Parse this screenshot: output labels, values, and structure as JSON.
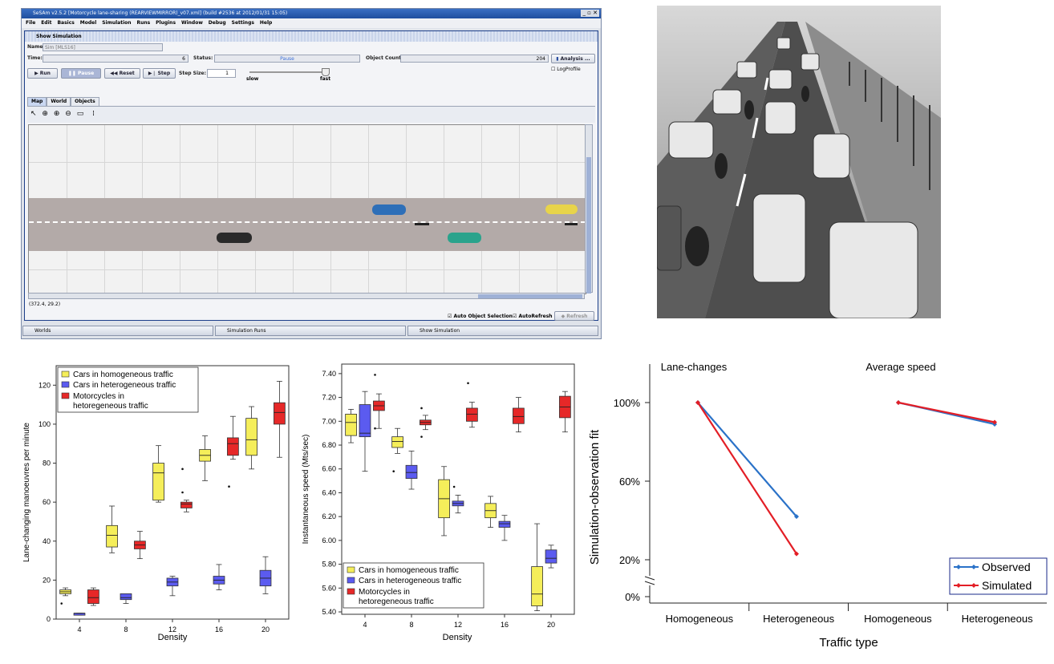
{
  "sim": {
    "title": "SeSAm v2.5.2 [Motorcycle lane-sharing (REARVIEWMIRROR)_v07.xml] (build #2536 at 2012/01/31 15:05)",
    "window_controls": "_ ▫ ✕",
    "menu": [
      "File",
      "Edit",
      "Basics",
      "Model",
      "Simulation",
      "Runs",
      "Plugins",
      "Window",
      "Debug",
      "Settings",
      "Help"
    ],
    "panel_title": "Show Simulation",
    "name_label": "Name:",
    "name_value": "Sim [MLS16]",
    "time_label": "Time:",
    "time_value": "6",
    "status_label": "Status:",
    "status_value": "Pause",
    "object_count_label": "Object Count:",
    "object_count_value": "204",
    "analysis_label": "Analysis ...",
    "logprofile_label": "LogProfile",
    "run_label": "Run",
    "pause_label": "Pause",
    "reset_label": "Reset",
    "step_label": "Step",
    "step_size_label": "Step Size:",
    "step_size_value": "1",
    "slow_label": "slow",
    "fast_label": "fast",
    "tabs": [
      "Map",
      "World",
      "Objects"
    ],
    "coords": "(372.4, 29.2)",
    "auto_object_selection": "Auto Object Selection",
    "auto_refresh": "AutoRefresh",
    "refresh": "Refresh",
    "taskbar": [
      "Worlds",
      "Simulation Runs",
      "Show Simulation"
    ],
    "colors": {
      "titlebar": "#2a5db5",
      "road": "#b3aaa8"
    }
  },
  "chart_data": [
    {
      "type": "box",
      "title": "",
      "xlabel": "Density",
      "ylabel": "Lane-changing manoeuvres per minute",
      "categories": [
        "4",
        "8",
        "12",
        "16",
        "20"
      ],
      "ylim": [
        0,
        130
      ],
      "yticks": [
        "0",
        "20",
        "40",
        "60",
        "80",
        "100",
        "120"
      ],
      "legend": {
        "placement": "top-left",
        "entries": [
          "Cars in homogeneous traffic",
          "Cars in heterogeneous traffic",
          "Motorcycles in hetoregeneous traffic"
        ]
      },
      "colors": [
        "#f5ee5a",
        "#5b5bf0",
        "#e62828"
      ],
      "series": [
        {
          "name": "Cars in homogeneous traffic",
          "boxes": [
            {
              "min": 12,
              "q1": 13,
              "median": 14,
              "q3": 15,
              "max": 16,
              "outliers": [
                8
              ]
            },
            {
              "min": 34,
              "q1": 37,
              "median": 43,
              "q3": 48,
              "max": 58,
              "outliers": []
            },
            {
              "min": 60,
              "q1": 61,
              "median": 75,
              "q3": 80,
              "max": 89,
              "outliers": []
            },
            {
              "min": 71,
              "q1": 81,
              "median": 84,
              "q3": 87,
              "max": 94,
              "outliers": []
            },
            {
              "min": 77,
              "q1": 84,
              "median": 92,
              "q3": 103,
              "max": 109,
              "outliers": []
            }
          ]
        },
        {
          "name": "Cars in heterogeneous traffic",
          "boxes": [
            {
              "min": 2,
              "q1": 2,
              "median": 3,
              "q3": 3,
              "max": 3,
              "outliers": []
            },
            {
              "min": 8,
              "q1": 10,
              "median": 11,
              "q3": 13,
              "max": 13,
              "outliers": []
            },
            {
              "min": 12,
              "q1": 17,
              "median": 19,
              "q3": 21,
              "max": 22,
              "outliers": []
            },
            {
              "min": 15,
              "q1": 18,
              "median": 20,
              "q3": 22,
              "max": 28,
              "outliers": []
            },
            {
              "min": 13,
              "q1": 17,
              "median": 21,
              "q3": 25,
              "max": 32,
              "outliers": []
            }
          ]
        },
        {
          "name": "Motorcycles in hetoregeneous traffic",
          "boxes": [
            {
              "min": 7,
              "q1": 8,
              "median": 11,
              "q3": 15,
              "max": 16,
              "outliers": []
            },
            {
              "min": 31,
              "q1": 36,
              "median": 38,
              "q3": 40,
              "max": 45,
              "outliers": []
            },
            {
              "min": 55,
              "q1": 57,
              "median": 59,
              "q3": 60,
              "max": 61,
              "outliers": [
                65,
                77
              ]
            },
            {
              "min": 82,
              "q1": 84,
              "median": 90,
              "q3": 93,
              "max": 104,
              "outliers": [
                68
              ]
            },
            {
              "min": 83,
              "q1": 100,
              "median": 106,
              "q3": 111,
              "max": 122,
              "outliers": []
            }
          ]
        }
      ]
    },
    {
      "type": "box",
      "title": "",
      "xlabel": "Density",
      "ylabel": "Instantaneous speed (Mts/sec)",
      "categories": [
        "4",
        "8",
        "12",
        "16",
        "20"
      ],
      "ylim": [
        5.38,
        7.48
      ],
      "yticks": [
        "5.40",
        "5.60",
        "5.80",
        "6.00",
        "6.20",
        "6.40",
        "6.60",
        "6.80",
        "7.00",
        "7.20",
        "7.40"
      ],
      "legend": {
        "placement": "bottom-left",
        "entries": [
          "Cars in homogeneous traffic",
          "Cars in heterogeneous traffic",
          "Motorcycles in hetoregeneous traffic"
        ]
      },
      "colors": [
        "#f5ee5a",
        "#5b5bf0",
        "#e62828"
      ],
      "series": [
        {
          "name": "Cars in homogeneous traffic",
          "boxes": [
            {
              "min": 6.82,
              "q1": 6.88,
              "median": 6.99,
              "q3": 7.06,
              "max": 7.1,
              "outliers": []
            },
            {
              "min": 6.73,
              "q1": 6.78,
              "median": 6.83,
              "q3": 6.87,
              "max": 6.94,
              "outliers": [
                6.58
              ]
            },
            {
              "min": 6.04,
              "q1": 6.19,
              "median": 6.35,
              "q3": 6.51,
              "max": 6.62,
              "outliers": []
            },
            {
              "min": 6.11,
              "q1": 6.19,
              "median": 6.25,
              "q3": 6.31,
              "max": 6.37,
              "outliers": []
            },
            {
              "min": 5.41,
              "q1": 5.45,
              "median": 5.55,
              "q3": 5.78,
              "max": 6.14,
              "outliers": []
            }
          ]
        },
        {
          "name": "Cars in heterogeneous traffic",
          "boxes": [
            {
              "min": 6.58,
              "q1": 6.87,
              "median": 6.9,
              "q3": 7.14,
              "max": 7.25,
              "outliers": []
            },
            {
              "min": 6.43,
              "q1": 6.52,
              "median": 6.57,
              "q3": 6.63,
              "max": 6.75,
              "outliers": []
            },
            {
              "min": 6.23,
              "q1": 6.29,
              "median": 6.31,
              "q3": 6.33,
              "max": 6.38,
              "outliers": [
                6.45
              ]
            },
            {
              "min": 6.0,
              "q1": 6.11,
              "median": 6.14,
              "q3": 6.16,
              "max": 6.21,
              "outliers": []
            },
            {
              "min": 5.77,
              "q1": 5.81,
              "median": 5.85,
              "q3": 5.92,
              "max": 5.96,
              "outliers": []
            }
          ]
        },
        {
          "name": "Motorcycles in hetoregeneous traffic",
          "boxes": [
            {
              "min": 6.94,
              "q1": 7.09,
              "median": 7.13,
              "q3": 7.17,
              "max": 7.23,
              "outliers": [
                7.39,
                6.94
              ]
            },
            {
              "min": 6.93,
              "q1": 6.97,
              "median": 6.99,
              "q3": 7.01,
              "max": 7.05,
              "outliers": [
                7.11,
                6.87
              ]
            },
            {
              "min": 6.95,
              "q1": 7.0,
              "median": 7.06,
              "q3": 7.11,
              "max": 7.16,
              "outliers": [
                7.32
              ]
            },
            {
              "min": 6.91,
              "q1": 6.98,
              "median": 7.04,
              "q3": 7.11,
              "max": 7.2,
              "outliers": []
            },
            {
              "min": 6.91,
              "q1": 7.03,
              "median": 7.12,
              "q3": 7.21,
              "max": 7.25,
              "outliers": []
            }
          ]
        }
      ]
    },
    {
      "type": "line",
      "title": "",
      "xlabel": "Traffic type",
      "ylabel": "Simulation-observation fit",
      "categories": [
        "Homogeneous",
        "Heterogeneous",
        "Homogeneous",
        "Heterogeneous"
      ],
      "groups": [
        "Lane-changes",
        "Average speed"
      ],
      "yticks": [
        "0%",
        "20%",
        "60%",
        "100%"
      ],
      "ylim": [
        0,
        100
      ],
      "legend": {
        "placement": "bottom-right",
        "entries": [
          "Observed",
          "Simulated"
        ]
      },
      "series": [
        {
          "name": "Observed",
          "color": "#2a72c8",
          "values": [
            100,
            42,
            100,
            89
          ]
        },
        {
          "name": "Simulated",
          "color": "#e31e26",
          "values": [
            100,
            23,
            100,
            90
          ]
        }
      ]
    }
  ]
}
